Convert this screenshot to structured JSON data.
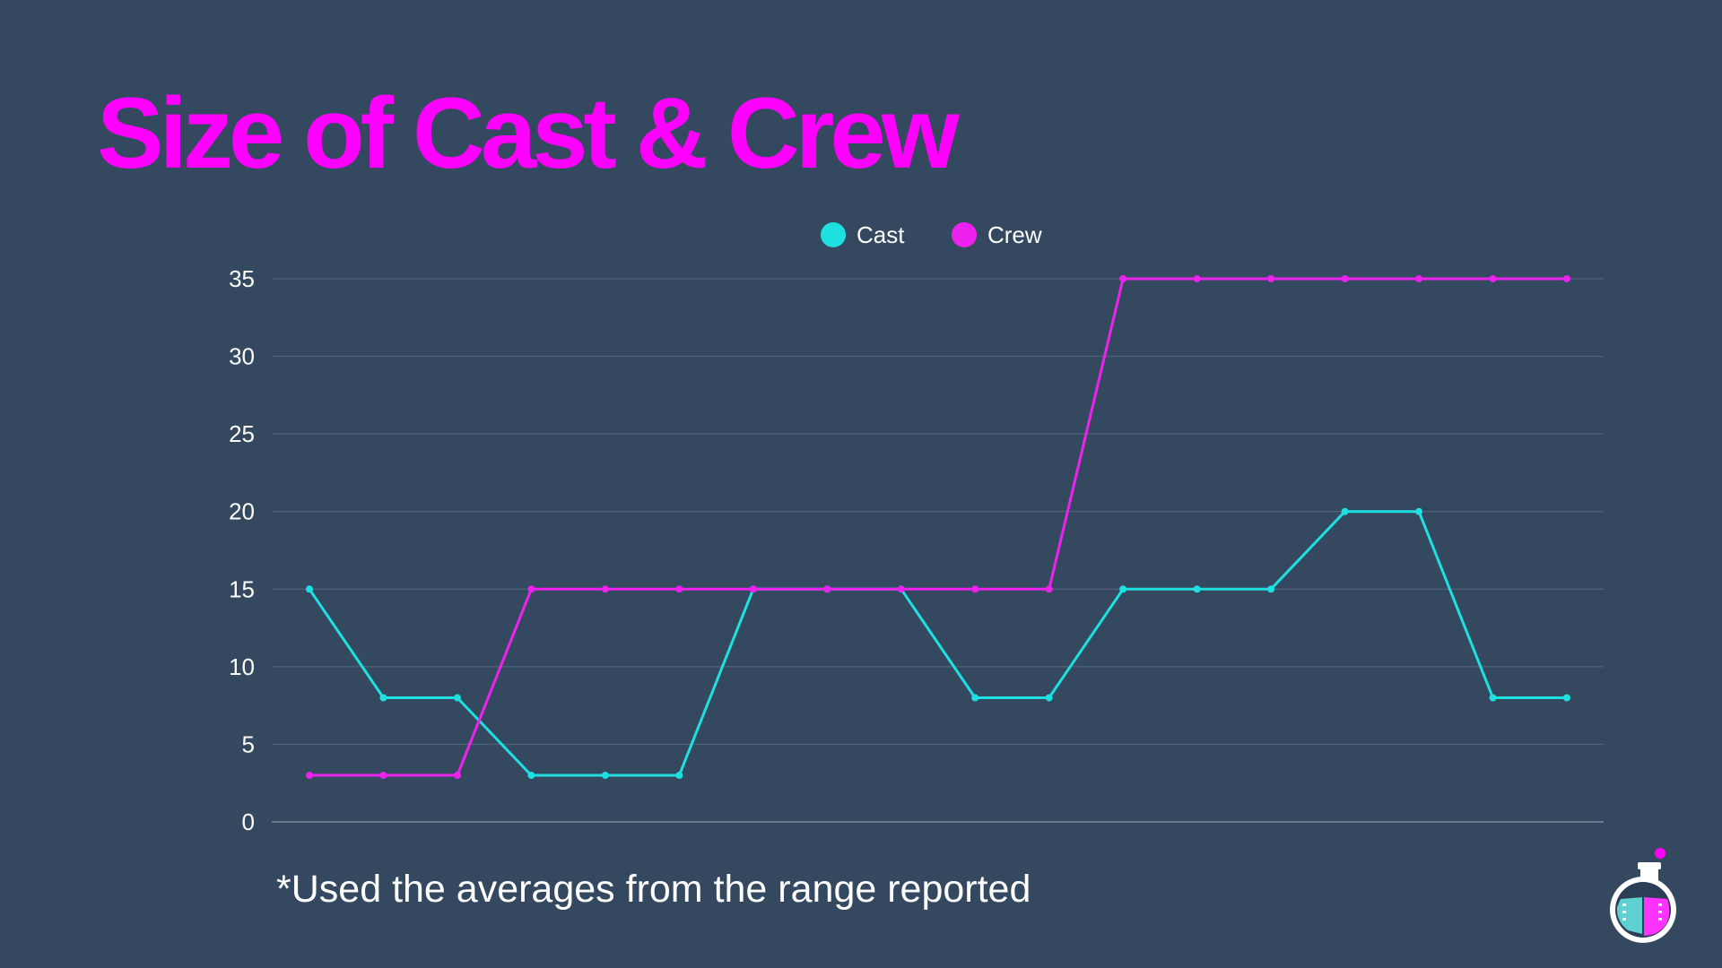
{
  "slide": {
    "title": "Size of Cast & Crew",
    "footnote": "*Used the averages from the range reported"
  },
  "logo": {
    "icon": "flask-film-icon"
  },
  "colors": {
    "background": "#344860",
    "title": "#ff00ff",
    "cast": "#1ee0e0",
    "crew": "#ee22ee",
    "grid": "#56677d",
    "text": "#ffffff"
  },
  "chart_data": {
    "type": "line",
    "title": "",
    "xlabel": "",
    "ylabel": "",
    "x": [
      1,
      2,
      3,
      4,
      5,
      6,
      7,
      8,
      9,
      10,
      11,
      12,
      13,
      14,
      15,
      16,
      17,
      18
    ],
    "ylim": [
      0,
      35
    ],
    "yticks": [
      0,
      5,
      10,
      15,
      20,
      25,
      30,
      35
    ],
    "grid": true,
    "legend": "top-center",
    "series": [
      {
        "name": "Cast",
        "color": "#1ee0e0",
        "values": [
          15,
          8,
          8,
          3,
          3,
          3,
          15,
          15,
          15,
          8,
          8,
          15,
          15,
          15,
          20,
          20,
          8,
          8
        ]
      },
      {
        "name": "Crew",
        "color": "#ee22ee",
        "values": [
          3,
          3,
          3,
          15,
          15,
          15,
          15,
          15,
          15,
          15,
          15,
          35,
          35,
          35,
          35,
          35,
          35,
          35
        ]
      }
    ]
  }
}
